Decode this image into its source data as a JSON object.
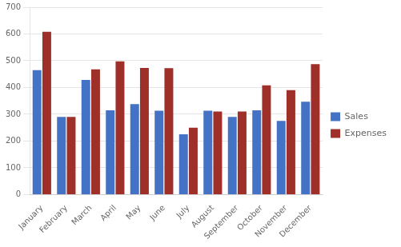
{
  "chart_data": {
    "type": "bar",
    "categories": [
      "January",
      "February",
      "March",
      "April",
      "May",
      "June",
      "July",
      "August",
      "September",
      "October",
      "November",
      "December"
    ],
    "series": [
      {
        "name": "Sales",
        "color": "#4472C4",
        "values": [
          465,
          290,
          428,
          315,
          338,
          313,
          225,
          313,
          290,
          315,
          275,
          347
        ]
      },
      {
        "name": "Expenses",
        "color": "#9E3029",
        "values": [
          608,
          290,
          468,
          498,
          473,
          472,
          250,
          310,
          310,
          408,
          390,
          487
        ]
      }
    ],
    "ylim": [
      0,
      700
    ],
    "yticks": [
      0,
      100,
      200,
      300,
      400,
      500,
      600,
      700
    ],
    "grid": true,
    "legend": "right"
  }
}
